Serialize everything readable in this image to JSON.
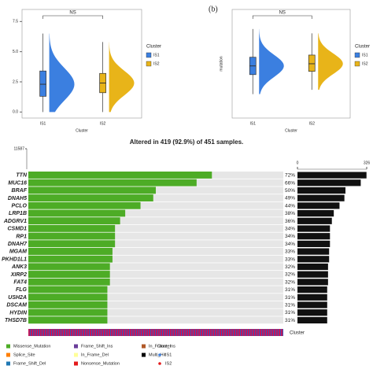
{
  "chart_data": [
    {
      "type": "raincloud",
      "categories": [
        "IS1",
        "IS2"
      ],
      "xlabel": "Cluster",
      "legend_title": "Cluster",
      "annotation": "NS",
      "ylim": [
        -0.5,
        8.5
      ],
      "yticks": [
        {
          "value": 0,
          "label": "0.0"
        },
        {
          "value": 2.5,
          "label": "2.5"
        },
        {
          "value": 5,
          "label": "5.0"
        },
        {
          "value": 7.5,
          "label": "7.5"
        }
      ],
      "series": [
        {
          "name": "IS1",
          "color": "#3b7fe0",
          "whisker_low": 0,
          "q1": 1.3,
          "median": 2.3,
          "q3": 3.4,
          "whisker_high": 6.5
        },
        {
          "name": "IS2",
          "color": "#e8b419",
          "whisker_low": 0,
          "q1": 1.6,
          "median": 2.4,
          "q3": 3.2,
          "whisker_high": 5.8
        }
      ]
    },
    {
      "type": "raincloud",
      "label": "(b)",
      "categories": [
        "IS1",
        "IS2"
      ],
      "xlabel": "Cluster",
      "ylabel": "mutation",
      "legend_title": "Cluster",
      "annotation": "NS",
      "ylim": [
        0,
        10
      ],
      "series": [
        {
          "name": "IS1",
          "color": "#3b7fe0",
          "whisker_low": 2.2,
          "q1": 4.0,
          "median": 4.8,
          "q3": 5.6,
          "whisker_high": 8.2
        },
        {
          "name": "IS2",
          "color": "#e8b419",
          "whisker_low": 2.6,
          "q1": 4.3,
          "median": 5.0,
          "q3": 5.8,
          "whisker_high": 7.8
        }
      ]
    },
    {
      "type": "oncoplot",
      "title": "Altered in 419 (92.9%) of 451 samples.",
      "ylim": [
        0,
        11587
      ],
      "yticks": [
        11587
      ],
      "xlim": [
        0,
        326
      ],
      "xticks": [
        0,
        326
      ],
      "genes": [
        "TTN",
        "MUC16",
        "BRAF",
        "DNAH5",
        "PCLO",
        "LRP1B",
        "ADGRV1",
        "CSMD1",
        "RP1",
        "DNAH7",
        "MGAM",
        "PKHD1L1",
        "ANK3",
        "XIRP2",
        "FAT4",
        "FLG",
        "USH2A",
        "DSCAM",
        "HYDIN",
        "THSD7B"
      ],
      "values": [
        72,
        66,
        50,
        49,
        44,
        38,
        36,
        34,
        34,
        34,
        33,
        33,
        32,
        32,
        32,
        31,
        31,
        31,
        31,
        31
      ],
      "value_labels": [
        "72%",
        "66%",
        "50%",
        "49%",
        "44%",
        "38%",
        "36%",
        "34%",
        "34%",
        "34%",
        "33%",
        "33%",
        "32%",
        "32%",
        "32%",
        "31%",
        "31%",
        "31%",
        "31%",
        "31%"
      ],
      "counts": [
        325,
        298,
        226,
        221,
        198,
        171,
        162,
        153,
        153,
        153,
        149,
        149,
        144,
        144,
        144,
        140,
        140,
        140,
        140,
        140
      ],
      "color": "#4dac26",
      "count_color": "#111111",
      "track_label": "Cluster",
      "legend": [
        {
          "name": "Missense_Mutation",
          "color": "#4dac26"
        },
        {
          "name": "Splice_Site",
          "color": "#ff7f00"
        },
        {
          "name": "Frame_Shift_Del",
          "color": "#1f78b4"
        },
        {
          "name": "Frame_Shift_Ins",
          "color": "#6a3d9a"
        },
        {
          "name": "In_Frame_Del",
          "color": "#ffff99"
        },
        {
          "name": "Nonsense_Mutation",
          "color": "#e31a1c"
        },
        {
          "name": "In_Frame_Ins",
          "color": "#b15928"
        },
        {
          "name": "Multi_Hit",
          "color": "#000000"
        }
      ],
      "cluster_legend": {
        "title": "Cluster",
        "items": [
          {
            "name": "IS1",
            "color": "#3b7fe0"
          },
          {
            "name": "IS2",
            "color": "#e31a1c"
          }
        ]
      }
    }
  ]
}
